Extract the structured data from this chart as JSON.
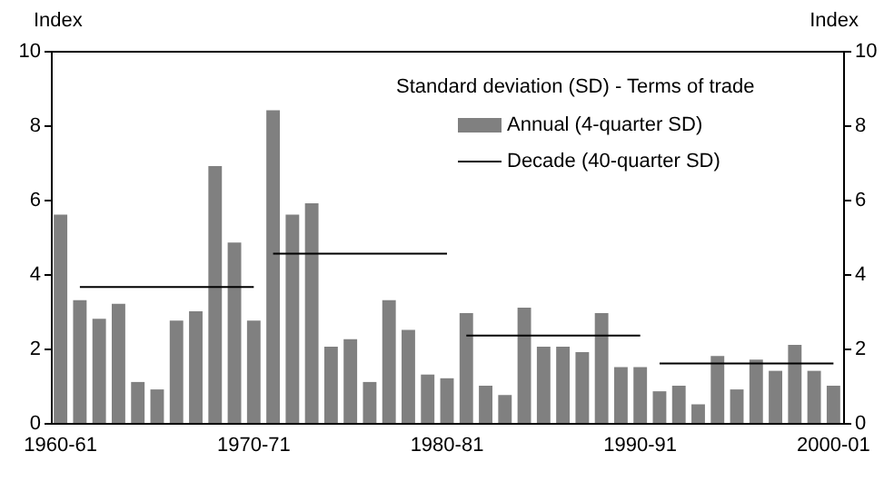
{
  "chart_data": {
    "type": "bar",
    "categories": [
      "1960-61",
      null,
      null,
      null,
      null,
      null,
      null,
      null,
      null,
      null,
      "1970-71",
      null,
      null,
      null,
      null,
      null,
      null,
      null,
      null,
      null,
      "1980-81",
      null,
      null,
      null,
      null,
      null,
      null,
      null,
      null,
      null,
      "1990-91",
      null,
      null,
      null,
      null,
      null,
      null,
      null,
      null,
      null,
      "2000-01"
    ],
    "series": [
      {
        "name": "Annual (4-quarter SD)",
        "color": "#808080",
        "values": [
          5.6,
          3.3,
          2.8,
          3.2,
          1.1,
          0.9,
          2.75,
          3.0,
          6.9,
          4.85,
          2.75,
          8.4,
          5.6,
          5.9,
          2.05,
          2.25,
          1.1,
          3.3,
          2.5,
          1.3,
          1.2,
          2.95,
          1.0,
          0.75,
          3.1,
          2.05,
          2.05,
          1.9,
          2.95,
          1.5,
          1.5,
          0.85,
          1.0,
          0.5,
          1.8,
          0.9,
          1.7,
          1.4,
          2.1,
          1.4,
          1.0
        ]
      },
      {
        "name": "Decade (40-quarter SD)",
        "color": "#000000",
        "type": "line",
        "values": [
          null,
          3.65,
          3.65,
          3.65,
          3.65,
          3.65,
          3.65,
          3.65,
          3.65,
          3.65,
          3.65,
          4.55,
          4.55,
          4.55,
          4.55,
          4.55,
          4.55,
          4.55,
          4.55,
          4.55,
          4.55,
          2.35,
          2.35,
          2.35,
          2.35,
          2.35,
          2.35,
          2.35,
          2.35,
          2.35,
          2.35,
          1.6,
          1.6,
          1.6,
          1.6,
          1.6,
          1.6,
          1.6,
          1.6,
          1.6,
          1.6
        ]
      }
    ],
    "legend_title": "Standard deviation (SD) - Terms of trade",
    "legend": "top right",
    "ylabel": "Index",
    "y2label": "Index",
    "ylim": [
      0,
      10
    ],
    "yticks": [
      0,
      2,
      4,
      6,
      8,
      10
    ],
    "y2lim": [
      0,
      10
    ],
    "y2ticks": [
      0,
      2,
      4,
      6,
      8,
      10
    ],
    "grid": false
  }
}
